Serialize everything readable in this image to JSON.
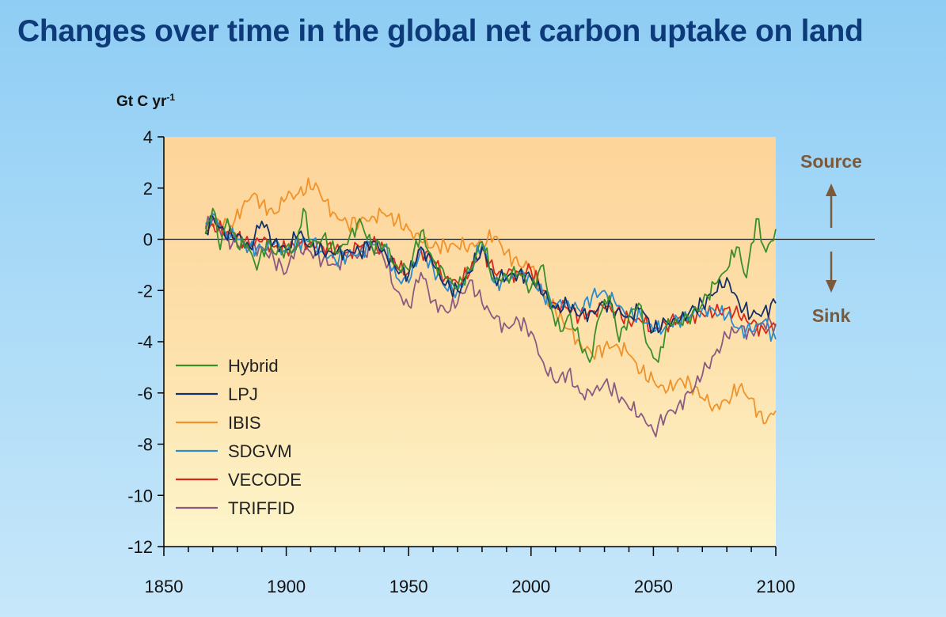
{
  "title": "Changes over time in the global net carbon uptake on land",
  "chart_data": {
    "type": "line",
    "title": "Changes over time in the global net carbon uptake on land",
    "ylabel": "Gt C yr",
    "ylabel_superscript": "-1",
    "xlim": [
      1850,
      2100
    ],
    "ylim": [
      -12,
      4
    ],
    "xticks": [
      "1850",
      "1900",
      "1950",
      "2000",
      "2050",
      "2100"
    ],
    "yticks": [
      "4",
      "2",
      "0",
      "-2",
      "-4",
      "-6",
      "-8",
      "-10",
      "-12"
    ],
    "x_tick_values": [
      1850,
      1900,
      1950,
      2000,
      2050,
      2100
    ],
    "y_tick_values": [
      4,
      2,
      0,
      -2,
      -4,
      -6,
      -8,
      -10,
      -12
    ],
    "annotations": {
      "source": "Source",
      "sink": "Sink"
    },
    "plot_background": "#fdd9a0",
    "series": [
      {
        "name": "Hybrid",
        "color": "#3a8f2a",
        "x": [
          1867,
          1870,
          1873,
          1876,
          1880,
          1884,
          1888,
          1892,
          1896,
          1900,
          1904,
          1907,
          1910,
          1915,
          1920,
          1925,
          1930,
          1935,
          1940,
          1945,
          1950,
          1955,
          1960,
          1965,
          1970,
          1975,
          1980,
          1985,
          1990,
          1995,
          2000,
          2005,
          2008,
          2012,
          2016,
          2020,
          2024,
          2028,
          2032,
          2036,
          2040,
          2044,
          2048,
          2052,
          2056,
          2060,
          2064,
          2068,
          2072,
          2076,
          2080,
          2084,
          2088,
          2092,
          2096,
          2100
        ],
        "y": [
          0.2,
          1.2,
          -0.4,
          0.8,
          -0.3,
          -0.2,
          -1.2,
          -0.1,
          -0.6,
          -0.3,
          -0.4,
          1.2,
          -0.3,
          0.1,
          -0.5,
          -0.2,
          0.8,
          -0.3,
          -0.2,
          -1.0,
          -1.2,
          0.3,
          -0.8,
          -1.5,
          -1.9,
          -1.2,
          -0.1,
          -1.6,
          -1.4,
          -1.3,
          -1.9,
          -1.0,
          -2.6,
          -3.6,
          -2.9,
          -4.1,
          -4.8,
          -3.0,
          -2.2,
          -4.0,
          -3.0,
          -2.5,
          -4.2,
          -4.8,
          -3.1,
          -3.3,
          -3.0,
          -2.8,
          -2.2,
          -1.7,
          -1.2,
          -0.3,
          -1.5,
          0.8,
          -0.5,
          0.4
        ]
      },
      {
        "name": "LPJ",
        "color": "#14306a",
        "x": [
          1867,
          1870,
          1875,
          1880,
          1885,
          1890,
          1895,
          1900,
          1905,
          1910,
          1915,
          1920,
          1925,
          1930,
          1935,
          1940,
          1945,
          1950,
          1955,
          1960,
          1965,
          1970,
          1975,
          1980,
          1985,
          1990,
          1995,
          2000,
          2005,
          2010,
          2015,
          2020,
          2025,
          2030,
          2035,
          2040,
          2045,
          2050,
          2055,
          2060,
          2065,
          2070,
          2075,
          2080,
          2085,
          2090,
          2095,
          2100
        ],
        "y": [
          0.3,
          0.9,
          0.1,
          0.2,
          -0.3,
          0.7,
          -0.1,
          -0.4,
          0.2,
          -0.3,
          -0.5,
          -0.6,
          -0.4,
          -0.5,
          -0.1,
          -0.4,
          -1.2,
          -1.4,
          -0.3,
          -1.0,
          -1.8,
          -2.0,
          -1.3,
          -0.3,
          -1.5,
          -1.5,
          -1.3,
          -1.5,
          -2.2,
          -2.7,
          -2.6,
          -3.0,
          -2.8,
          -2.5,
          -2.8,
          -3.0,
          -2.7,
          -3.6,
          -3.2,
          -3.3,
          -2.8,
          -2.5,
          -2.1,
          -1.5,
          -2.5,
          -3.0,
          -2.8,
          -2.5
        ]
      },
      {
        "name": "IBIS",
        "color": "#f0922a",
        "x": [
          1867,
          1872,
          1878,
          1883,
          1887,
          1890,
          1895,
          1900,
          1905,
          1912,
          1915,
          1920,
          1925,
          1930,
          1935,
          1940,
          1945,
          1950,
          1955,
          1960,
          1965,
          1970,
          1975,
          1980,
          1985,
          1990,
          1995,
          2000,
          2005,
          2010,
          2015,
          2020,
          2025,
          2030,
          2035,
          2040,
          2045,
          2050,
          2055,
          2060,
          2065,
          2070,
          2075,
          2080,
          2085,
          2090,
          2095,
          2100
        ],
        "y": [
          0.5,
          0.8,
          0.5,
          1.5,
          1.8,
          1.4,
          1.0,
          1.6,
          1.8,
          2.2,
          1.5,
          1.0,
          0.6,
          0.7,
          0.9,
          1.0,
          0.7,
          0.4,
          -0.1,
          -0.3,
          -0.2,
          -0.3,
          -0.2,
          -0.1,
          0.1,
          -0.5,
          -1.0,
          -1.1,
          -2.2,
          -2.8,
          -3.5,
          -4.0,
          -4.5,
          -4.2,
          -4.1,
          -4.5,
          -5.2,
          -5.5,
          -6.0,
          -5.5,
          -5.6,
          -6.2,
          -6.5,
          -6.3,
          -5.8,
          -6.2,
          -7.2,
          -6.7
        ]
      },
      {
        "name": "SDGVM",
        "color": "#2a8ccc",
        "x": [
          1867,
          1870,
          1875,
          1880,
          1885,
          1890,
          1895,
          1900,
          1905,
          1910,
          1915,
          1920,
          1925,
          1930,
          1935,
          1940,
          1945,
          1950,
          1955,
          1960,
          1965,
          1970,
          1975,
          1980,
          1985,
          1990,
          1995,
          2000,
          2005,
          2010,
          2015,
          2020,
          2025,
          2030,
          2035,
          2040,
          2045,
          2050,
          2055,
          2060,
          2065,
          2070,
          2075,
          2080,
          2085,
          2090,
          2095,
          2100
        ],
        "y": [
          0.6,
          1.0,
          0.3,
          0.0,
          -0.3,
          -0.4,
          -0.2,
          -0.5,
          -0.2,
          0.0,
          -0.5,
          -0.8,
          -0.6,
          -0.5,
          -0.2,
          -0.3,
          -1.5,
          -1.7,
          -0.4,
          -1.1,
          -1.9,
          -2.0,
          -1.2,
          -0.2,
          -1.7,
          -1.6,
          -1.4,
          -1.5,
          -2.2,
          -2.6,
          -2.4,
          -2.8,
          -2.2,
          -2.0,
          -2.6,
          -3.0,
          -3.0,
          -3.6,
          -3.4,
          -3.1,
          -3.0,
          -2.7,
          -2.8,
          -3.0,
          -3.5,
          -3.6,
          -3.2,
          -3.9
        ]
      },
      {
        "name": "VECODE",
        "color": "#d8281a",
        "x": [
          1867,
          1870,
          1875,
          1880,
          1885,
          1890,
          1895,
          1900,
          1905,
          1910,
          1915,
          1920,
          1925,
          1930,
          1935,
          1940,
          1945,
          1950,
          1955,
          1960,
          1965,
          1970,
          1975,
          1980,
          1985,
          1990,
          1995,
          2000,
          2005,
          2010,
          2015,
          2020,
          2025,
          2030,
          2035,
          2040,
          2045,
          2050,
          2055,
          2060,
          2065,
          2070,
          2075,
          2080,
          2085,
          2090,
          2095,
          2100
        ],
        "y": [
          0.3,
          0.6,
          0.2,
          0.1,
          -0.2,
          -0.1,
          -0.3,
          -0.4,
          -0.2,
          -0.1,
          -0.3,
          -0.4,
          -0.5,
          -0.3,
          -0.2,
          -0.4,
          -1.1,
          -1.3,
          -0.4,
          -0.8,
          -1.5,
          -1.7,
          -1.3,
          -0.4,
          -1.3,
          -1.4,
          -1.3,
          -1.2,
          -2.0,
          -2.5,
          -2.7,
          -3.0,
          -2.8,
          -2.7,
          -2.8,
          -3.2,
          -3.2,
          -3.5,
          -3.3,
          -3.1,
          -3.0,
          -2.9,
          -2.9,
          -2.7,
          -3.0,
          -3.3,
          -3.5,
          -3.4
        ]
      },
      {
        "name": "TRIFFID",
        "color": "#8a5a82",
        "x": [
          1867,
          1870,
          1875,
          1880,
          1885,
          1890,
          1895,
          1900,
          1904,
          1910,
          1915,
          1920,
          1925,
          1930,
          1935,
          1940,
          1945,
          1950,
          1955,
          1960,
          1965,
          1970,
          1975,
          1980,
          1985,
          1990,
          1995,
          2000,
          2005,
          2010,
          2015,
          2020,
          2025,
          2030,
          2035,
          2040,
          2045,
          2050,
          2055,
          2060,
          2065,
          2070,
          2075,
          2080,
          2085,
          2090,
          2095,
          2100
        ],
        "y": [
          0.4,
          0.8,
          0.0,
          -0.2,
          -0.4,
          -0.3,
          -0.8,
          -1.3,
          -0.3,
          -0.5,
          -0.8,
          -1.0,
          -0.7,
          -0.6,
          -0.3,
          -0.8,
          -2.0,
          -2.6,
          -1.3,
          -2.4,
          -2.8,
          -2.5,
          -1.6,
          -2.5,
          -3.1,
          -3.4,
          -3.2,
          -3.6,
          -4.8,
          -5.6,
          -5.2,
          -6.0,
          -6.1,
          -5.6,
          -6.0,
          -6.6,
          -6.8,
          -7.5,
          -6.9,
          -6.5,
          -6.0,
          -5.3,
          -4.5,
          -3.8,
          -3.5,
          -3.6,
          -3.3,
          -3.3
        ]
      }
    ]
  }
}
